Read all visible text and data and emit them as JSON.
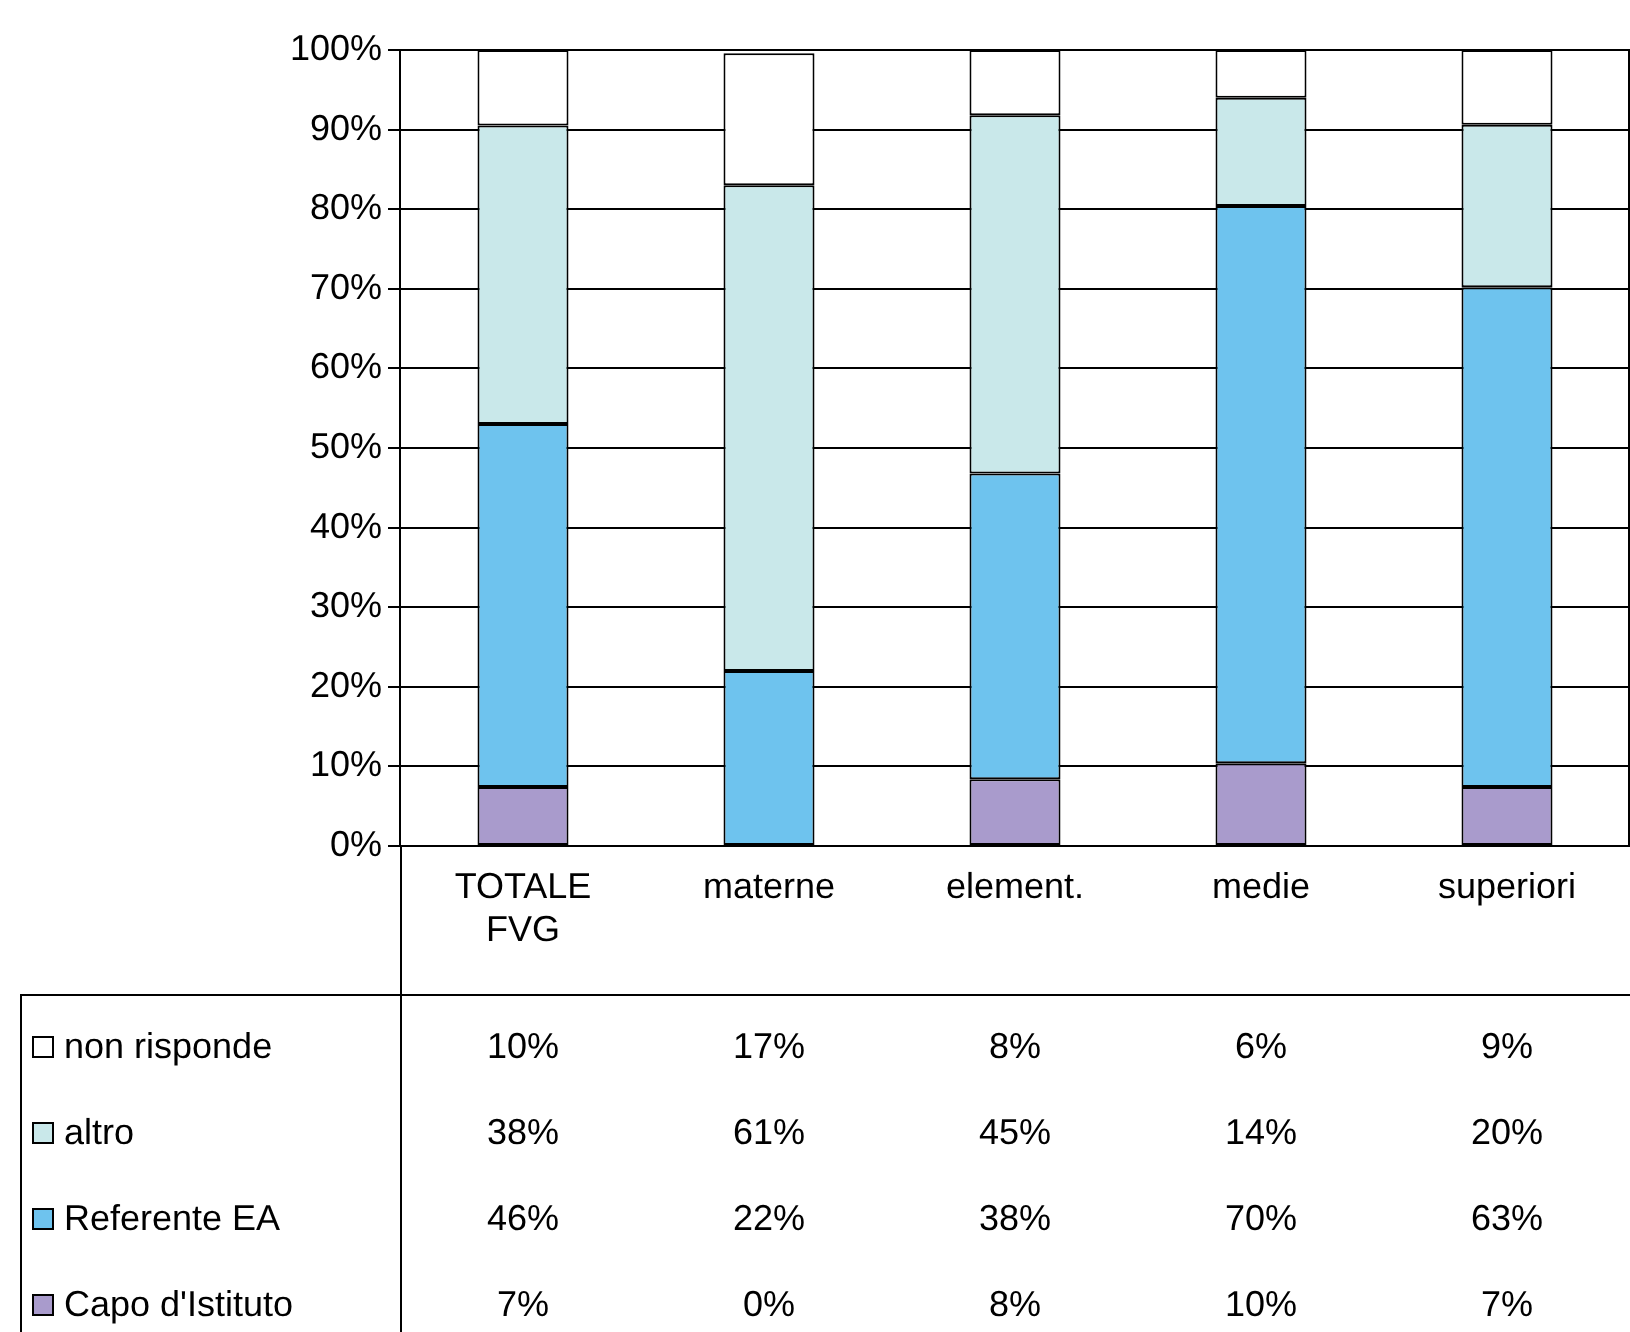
{
  "chart_data": {
    "type": "bar",
    "stacked": true,
    "categories": [
      "TOTALE FVG",
      "materne",
      "element.",
      "medie",
      "superiori"
    ],
    "series": [
      {
        "name": "Capo d'Istituto",
        "color": "#a99bcc",
        "values": [
          7.4,
          0,
          8.4,
          10.4,
          7.4
        ],
        "value_labels": [
          "7%",
          "0%",
          "8%",
          "10%",
          "7%"
        ]
      },
      {
        "name": "Referente EA",
        "color": "#6ec3ee",
        "values": [
          45.6,
          22,
          38.4,
          70,
          62.8
        ],
        "value_labels": [
          "46%",
          "22%",
          "38%",
          "70%",
          "63%"
        ]
      },
      {
        "name": "altro",
        "color": "#c9e8ea",
        "values": [
          37.5,
          61,
          45,
          13.6,
          20.4
        ],
        "value_labels": [
          "38%",
          "61%",
          "45%",
          "14%",
          "20%"
        ]
      },
      {
        "name": "non risponde",
        "color": "#ffffff",
        "values": [
          9.5,
          16.6,
          8.2,
          6,
          9.4
        ],
        "value_labels": [
          "10%",
          "17%",
          "8%",
          "6%",
          "9%"
        ]
      }
    ],
    "ylim": [
      0,
      100
    ],
    "yticks": [
      {
        "value": 0,
        "label": "0%"
      },
      {
        "value": 10,
        "label": "10%"
      },
      {
        "value": 20,
        "label": "20%"
      },
      {
        "value": 30,
        "label": "30%"
      },
      {
        "value": 40,
        "label": "40%"
      },
      {
        "value": 50,
        "label": "50%"
      },
      {
        "value": 60,
        "label": "60%"
      },
      {
        "value": 70,
        "label": "70%"
      },
      {
        "value": 80,
        "label": "80%"
      },
      {
        "value": 90,
        "label": "90%"
      },
      {
        "value": 100,
        "label": "100%"
      }
    ],
    "grid": "y",
    "legend": "bottom left"
  }
}
